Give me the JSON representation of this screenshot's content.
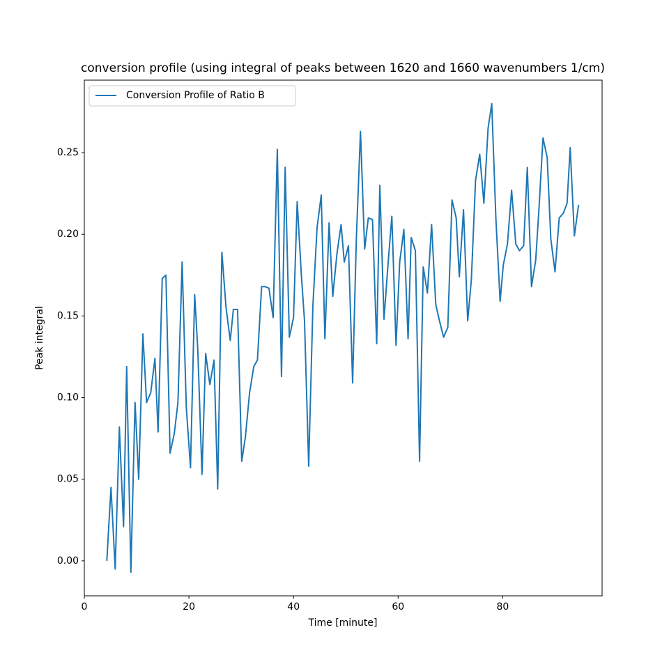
{
  "chart_data": {
    "type": "line",
    "title": "conversion profile (using integral of peaks between 1620 and 1660 wavenumbers 1/cm)",
    "x_label": "Time [minute]",
    "y_label": "Peak integral",
    "legend": "upper left",
    "x": [
      4.3,
      5.1,
      5.9,
      6.7,
      7.5,
      8.1,
      8.9,
      9.7,
      10.4,
      11.2,
      11.9,
      12.7,
      13.5,
      14.1,
      14.9,
      15.6,
      16.4,
      17.2,
      17.9,
      18.7,
      19.5,
      20.3,
      21.1,
      21.7,
      22.5,
      23.2,
      24.0,
      24.8,
      25.5,
      26.3,
      27.1,
      27.9,
      28.5,
      29.3,
      30.1,
      30.8,
      31.6,
      32.4,
      33.1,
      33.9,
      34.5,
      35.3,
      36.1,
      36.9,
      37.7,
      38.4,
      39.2,
      40.0,
      40.7,
      41.5,
      42.1,
      42.9,
      43.7,
      44.5,
      45.3,
      46.0,
      46.8,
      47.5,
      48.3,
      49.1,
      49.7,
      50.5,
      51.3,
      52.0,
      52.8,
      53.6,
      54.3,
      55.1,
      55.9,
      56.5,
      57.3,
      58.1,
      58.8,
      59.6,
      60.3,
      61.1,
      61.9,
      62.5,
      63.3,
      64.1,
      64.8,
      65.6,
      66.4,
      67.2,
      67.9,
      68.7,
      69.5,
      70.3,
      71.1,
      71.7,
      72.5,
      73.3,
      74.0,
      74.8,
      75.6,
      76.4,
      77.2,
      77.9,
      78.7,
      79.5,
      80.1,
      80.9,
      81.7,
      82.5,
      83.2,
      84.0,
      84.7,
      85.5,
      86.3,
      86.9,
      87.7,
      88.5,
      89.2,
      90.0,
      90.8,
      91.6,
      92.3,
      92.9,
      93.7,
      94.5
    ],
    "series": [
      {
        "name": "Conversion Profile of Ratio B",
        "color": "#1f77b4",
        "values": [
          0.0,
          0.045,
          -0.005,
          0.082,
          0.021,
          0.119,
          -0.007,
          0.097,
          0.05,
          0.139,
          0.097,
          0.103,
          0.124,
          0.079,
          0.173,
          0.175,
          0.066,
          0.078,
          0.097,
          0.183,
          0.094,
          0.057,
          0.163,
          0.129,
          0.053,
          0.127,
          0.108,
          0.123,
          0.044,
          0.189,
          0.155,
          0.135,
          0.154,
          0.154,
          0.061,
          0.076,
          0.103,
          0.119,
          0.123,
          0.168,
          0.168,
          0.167,
          0.149,
          0.252,
          0.113,
          0.241,
          0.137,
          0.149,
          0.22,
          0.175,
          0.147,
          0.058,
          0.156,
          0.204,
          0.224,
          0.136,
          0.207,
          0.162,
          0.188,
          0.206,
          0.183,
          0.193,
          0.109,
          0.196,
          0.263,
          0.191,
          0.21,
          0.209,
          0.133,
          0.23,
          0.148,
          0.183,
          0.211,
          0.132,
          0.183,
          0.203,
          0.136,
          0.198,
          0.19,
          0.061,
          0.18,
          0.164,
          0.206,
          0.157,
          0.147,
          0.137,
          0.143,
          0.221,
          0.21,
          0.174,
          0.215,
          0.147,
          0.172,
          0.233,
          0.249,
          0.219,
          0.265,
          0.28,
          0.209,
          0.159,
          0.181,
          0.194,
          0.227,
          0.194,
          0.19,
          0.193,
          0.241,
          0.168,
          0.184,
          0.214,
          0.259,
          0.247,
          0.197,
          0.177,
          0.21,
          0.213,
          0.219,
          0.253,
          0.199,
          0.218
        ]
      }
    ],
    "xlim": [
      0,
      99
    ],
    "xticks": [
      0,
      20,
      40,
      60,
      80
    ],
    "ylim": [
      -0.0214,
      0.2944
    ],
    "yticks": [
      {
        "value": 0,
        "label": "0.00"
      },
      {
        "value": 0.05,
        "label": "0.05"
      },
      {
        "value": 0.1,
        "label": "0.10"
      },
      {
        "value": 0.15,
        "label": "0.15"
      },
      {
        "value": 0.2,
        "label": "0.20"
      },
      {
        "value": 0.25,
        "label": "0.25"
      }
    ]
  }
}
